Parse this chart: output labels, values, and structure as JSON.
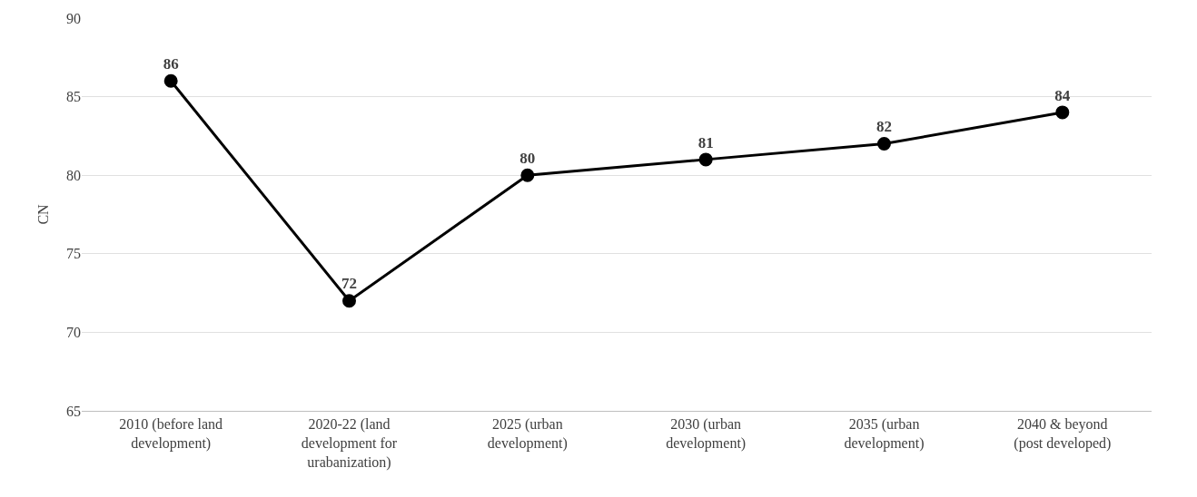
{
  "chart_data": {
    "type": "line",
    "ylabel": "CN",
    "categories": [
      "2010 (before land development)",
      "2020-22 (land development for urabanization)",
      "2025 (urban development)",
      "2030 (urban development)",
      "2035 (urban development)",
      "2040 & beyond (post developed)"
    ],
    "series": [
      {
        "color": "#000000",
        "values": [
          86,
          72,
          80,
          81,
          82,
          84
        ]
      }
    ],
    "ylim": [
      65,
      90
    ],
    "yticks": [
      65,
      70,
      75,
      80,
      85,
      90
    ],
    "grid": "y",
    "marker": "circle",
    "line_style": "solid",
    "data_labels": true
  }
}
